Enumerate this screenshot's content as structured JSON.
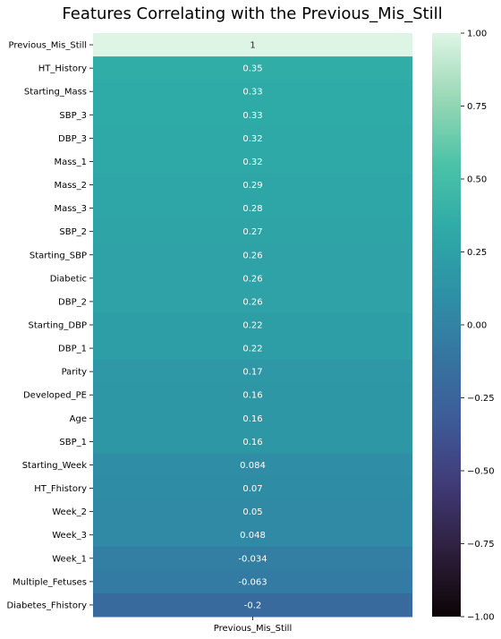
{
  "chart_data": {
    "type": "heatmap",
    "title": "Features Correlating with the Previous_Mis_Still",
    "x_categories": [
      "Previous_Mis_Still"
    ],
    "y_categories": [
      "Previous_Mis_Still",
      "HT_History",
      "Starting_Mass",
      "SBP_3",
      "DBP_3",
      "Mass_1",
      "Mass_2",
      "Mass_3",
      "SBP_2",
      "Starting_SBP",
      "Diabetic",
      "DBP_2",
      "Starting_DBP",
      "DBP_1",
      "Parity",
      "Developed_PE",
      "Age",
      "SBP_1",
      "Starting_Week",
      "HT_Fhistory",
      "Week_2",
      "Week_3",
      "Week_1",
      "Multiple_Fetuses",
      "Diabetes_Fhistory"
    ],
    "values": [
      1,
      0.35,
      0.33,
      0.33,
      0.32,
      0.32,
      0.29,
      0.28,
      0.27,
      0.26,
      0.26,
      0.26,
      0.22,
      0.22,
      0.17,
      0.16,
      0.16,
      0.16,
      0.084,
      0.07,
      0.05,
      0.048,
      -0.034,
      -0.063,
      -0.2
    ],
    "value_labels": [
      "1",
      "0.35",
      "0.33",
      "0.33",
      "0.32",
      "0.32",
      "0.29",
      "0.28",
      "0.27",
      "0.26",
      "0.26",
      "0.26",
      "0.22",
      "0.22",
      "0.17",
      "0.16",
      "0.16",
      "0.16",
      "0.084",
      "0.07",
      "0.05",
      "0.048",
      "-0.034",
      "-0.063",
      "-0.2"
    ],
    "colorbar": {
      "range": [
        -1,
        1
      ],
      "ticks": [
        "1.00",
        "0.75",
        "0.50",
        "0.25",
        "0.00",
        "−0.25",
        "−0.50",
        "−0.75",
        "−1.00"
      ],
      "tick_values": [
        1,
        0.75,
        0.5,
        0.25,
        0,
        -0.25,
        -0.5,
        -0.75,
        -1
      ],
      "colormap": "mako",
      "colormap_stops": [
        "#0b0405",
        "#2e1e3c",
        "#403a75",
        "#3e5a98",
        "#3575a1",
        "#2e91a6",
        "#2eaba7",
        "#4cc3a7",
        "#9ad8b5",
        "#def5e5"
      ]
    }
  }
}
